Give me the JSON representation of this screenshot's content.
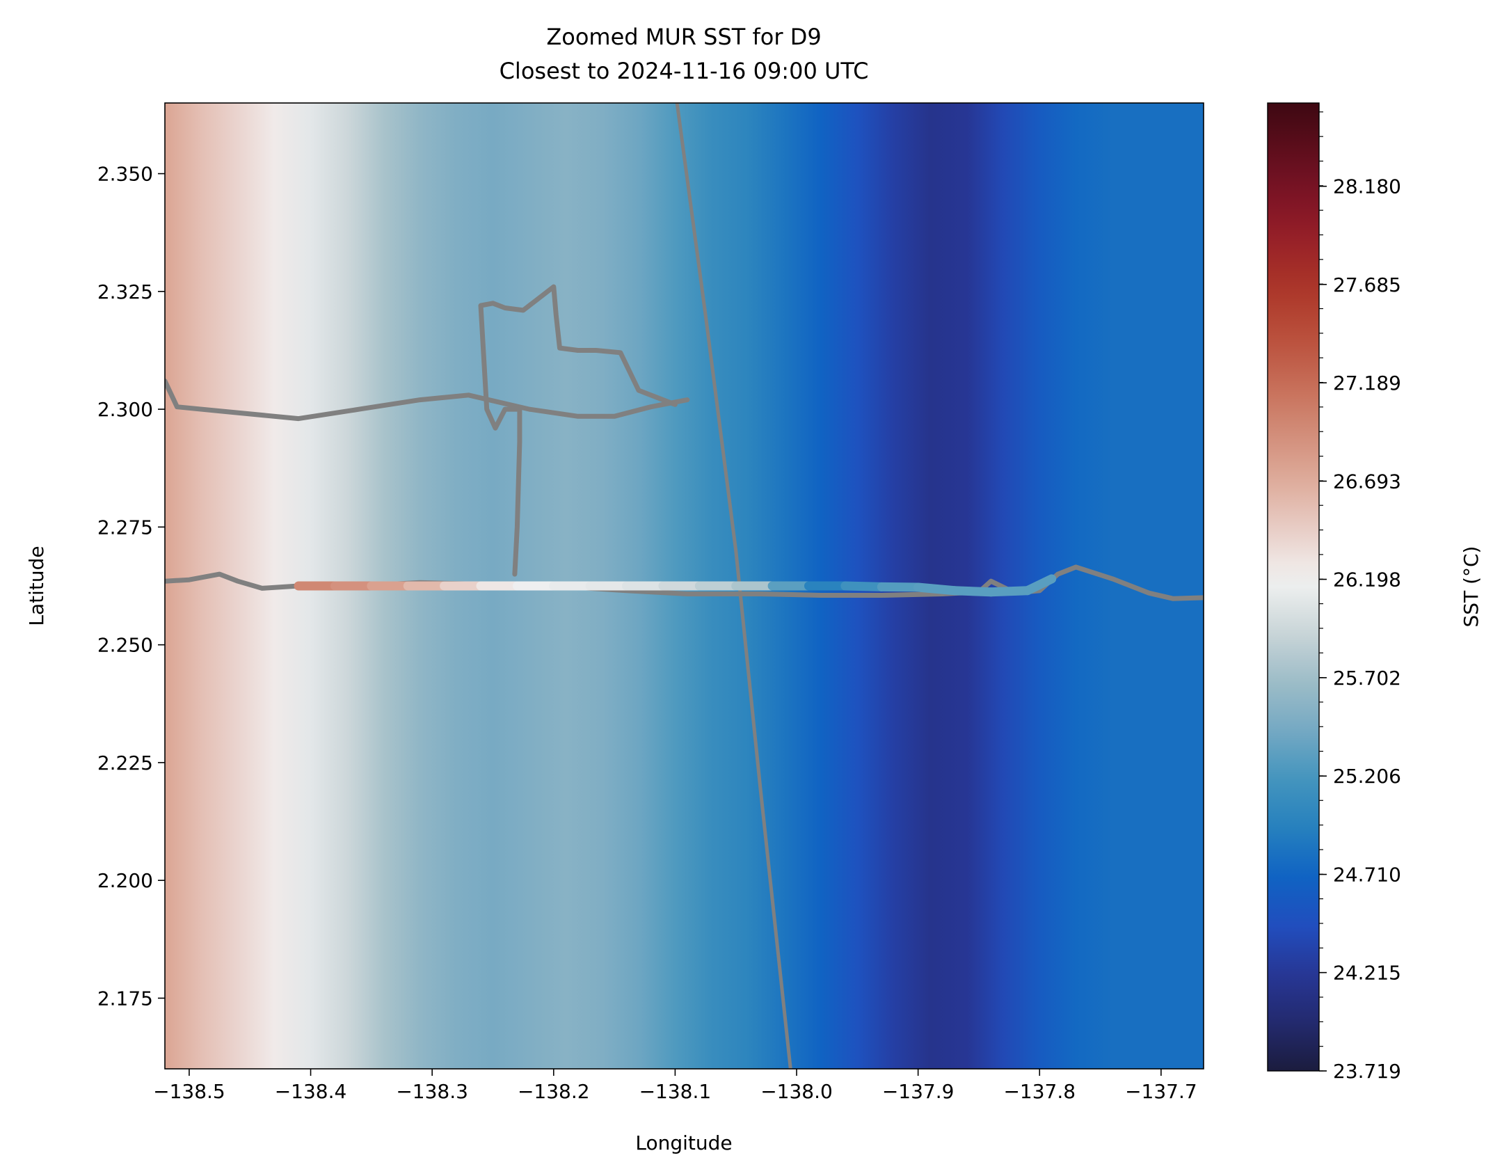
{
  "chart_data": {
    "type": "heatmap",
    "title": "Zoomed MUR SST for D9",
    "subtitle": "Closest to 2024-11-16 09:00 UTC",
    "xlabel": "Longitude",
    "ylabel": "Latitude",
    "xlim": [
      -138.52,
      -137.665
    ],
    "ylim": [
      2.16,
      2.365
    ],
    "xticks": [
      -138.5,
      -138.4,
      -138.3,
      -138.2,
      -138.1,
      -138.0,
      -137.9,
      -137.8,
      -137.7
    ],
    "xtick_labels": [
      "−138.5",
      "−138.4",
      "−138.3",
      "−138.2",
      "−138.1",
      "−138.0",
      "−137.9",
      "−137.8",
      "−137.7"
    ],
    "yticks": [
      2.175,
      2.2,
      2.225,
      2.25,
      2.275,
      2.3,
      2.325,
      2.35
    ],
    "ytick_labels": [
      "2.175",
      "2.200",
      "2.225",
      "2.250",
      "2.275",
      "2.300",
      "2.325",
      "2.350"
    ],
    "colorbar": {
      "label": "SST (°C)",
      "range": [
        23.719,
        28.6
      ],
      "ticks": [
        23.719,
        24.215,
        24.71,
        25.206,
        25.702,
        26.198,
        26.693,
        27.189,
        27.685,
        28.18
      ],
      "tick_labels": [
        "23.719",
        "24.215",
        "24.710",
        "25.206",
        "25.702",
        "26.198",
        "26.693",
        "27.189",
        "27.685",
        "28.180"
      ]
    },
    "sst_field_columns": [
      {
        "lon": -138.52,
        "sst": 26.75
      },
      {
        "lon": -138.49,
        "sst": 26.55
      },
      {
        "lon": -138.46,
        "sst": 26.4
      },
      {
        "lon": -138.43,
        "sst": 26.25
      },
      {
        "lon": -138.4,
        "sst": 26.1
      },
      {
        "lon": -138.37,
        "sst": 25.95
      },
      {
        "lon": -138.34,
        "sst": 25.75
      },
      {
        "lon": -138.31,
        "sst": 25.6
      },
      {
        "lon": -138.28,
        "sst": 25.5
      },
      {
        "lon": -138.25,
        "sst": 25.45
      },
      {
        "lon": -138.22,
        "sst": 25.5
      },
      {
        "lon": -138.19,
        "sst": 25.55
      },
      {
        "lon": -138.16,
        "sst": 25.5
      },
      {
        "lon": -138.13,
        "sst": 25.4
      },
      {
        "lon": -138.1,
        "sst": 25.25
      },
      {
        "lon": -138.07,
        "sst": 25.1
      },
      {
        "lon": -138.04,
        "sst": 25.0
      },
      {
        "lon": -138.01,
        "sst": 24.85
      },
      {
        "lon": -137.98,
        "sst": 24.7
      },
      {
        "lon": -137.95,
        "sst": 24.5
      },
      {
        "lon": -137.92,
        "sst": 24.3
      },
      {
        "lon": -137.89,
        "sst": 24.15
      },
      {
        "lon": -137.86,
        "sst": 24.2
      },
      {
        "lon": -137.83,
        "sst": 24.4
      },
      {
        "lon": -137.8,
        "sst": 24.6
      },
      {
        "lon": -137.77,
        "sst": 24.75
      },
      {
        "lon": -137.74,
        "sst": 24.8
      },
      {
        "lon": -137.71,
        "sst": 24.8
      },
      {
        "lon": -137.68,
        "sst": 24.8
      },
      {
        "lon": -137.665,
        "sst": 24.8
      }
    ],
    "gray_tracks": [
      {
        "name": "",
        "points": [
          [
            -138.52,
            2.306
          ],
          [
            -138.51,
            2.3005
          ],
          [
            -138.47,
            2.2995
          ],
          [
            -138.41,
            2.298
          ],
          [
            -138.36,
            2.3
          ],
          [
            -138.31,
            2.302
          ],
          [
            -138.27,
            2.303
          ],
          [
            -138.22,
            2.3
          ],
          [
            -138.18,
            2.2985
          ],
          [
            -138.15,
            2.2985
          ],
          [
            -138.12,
            2.3005
          ],
          [
            -138.09,
            2.302
          ]
        ]
      },
      {
        "name": "",
        "points": [
          [
            -138.1,
            2.301
          ],
          [
            -138.13,
            2.304
          ],
          [
            -138.145,
            2.312
          ],
          [
            -138.165,
            2.3125
          ],
          [
            -138.18,
            2.3125
          ],
          [
            -138.195,
            2.313
          ],
          [
            -138.198,
            2.32
          ],
          [
            -138.2,
            2.326
          ],
          [
            -138.225,
            2.321
          ],
          [
            -138.24,
            2.3215
          ],
          [
            -138.25,
            2.3225
          ],
          [
            -138.26,
            2.322
          ],
          [
            -138.255,
            2.3
          ],
          [
            -138.248,
            2.296
          ],
          [
            -138.24,
            2.3
          ],
          [
            -138.228,
            2.3
          ],
          [
            -138.228,
            2.293
          ],
          [
            -138.23,
            2.275
          ],
          [
            -138.232,
            2.265
          ]
        ]
      },
      {
        "name": "",
        "points": [
          [
            -138.52,
            2.2635
          ],
          [
            -138.5,
            2.2638
          ],
          [
            -138.475,
            2.265
          ],
          [
            -138.46,
            2.2635
          ],
          [
            -138.44,
            2.262
          ],
          [
            -138.41,
            2.2625
          ],
          [
            -138.36,
            2.2625
          ],
          [
            -138.31,
            2.2632
          ],
          [
            -138.25,
            2.2628
          ],
          [
            -138.2,
            2.2625
          ],
          [
            -138.14,
            2.2615
          ],
          [
            -138.09,
            2.2608
          ],
          [
            -138.03,
            2.2608
          ],
          [
            -137.98,
            2.2605
          ],
          [
            -137.93,
            2.2605
          ],
          [
            -137.88,
            2.2608
          ],
          [
            -137.85,
            2.2612
          ],
          [
            -137.84,
            2.2635
          ],
          [
            -137.82,
            2.261
          ],
          [
            -137.8,
            2.2615
          ],
          [
            -137.785,
            2.265
          ],
          [
            -137.77,
            2.2665
          ],
          [
            -137.74,
            2.264
          ],
          [
            -137.71,
            2.261
          ],
          [
            -137.69,
            2.2598
          ],
          [
            -137.665,
            2.26
          ]
        ]
      },
      {
        "name": "",
        "points": [
          [
            -138.1,
            2.368
          ],
          [
            -138.075,
            2.32
          ],
          [
            -138.05,
            2.27
          ],
          [
            -138.03,
            2.22
          ],
          [
            -138.005,
            2.16
          ]
        ]
      }
    ],
    "colored_track": [
      {
        "lon": -138.41,
        "lat": 2.2625,
        "sst": 27.0
      },
      {
        "lon": -138.38,
        "lat": 2.2625,
        "sst": 26.95
      },
      {
        "lon": -138.35,
        "lat": 2.2625,
        "sst": 26.85
      },
      {
        "lon": -138.32,
        "lat": 2.2625,
        "sst": 26.7
      },
      {
        "lon": -138.29,
        "lat": 2.2625,
        "sst": 26.5
      },
      {
        "lon": -138.26,
        "lat": 2.2625,
        "sst": 26.35
      },
      {
        "lon": -138.23,
        "lat": 2.2625,
        "sst": 26.2
      },
      {
        "lon": -138.2,
        "lat": 2.2625,
        "sst": 26.15
      },
      {
        "lon": -138.17,
        "lat": 2.2625,
        "sst": 26.12
      },
      {
        "lon": -138.14,
        "lat": 2.2625,
        "sst": 26.1
      },
      {
        "lon": -138.11,
        "lat": 2.2625,
        "sst": 26.02
      },
      {
        "lon": -138.08,
        "lat": 2.2625,
        "sst": 25.92
      },
      {
        "lon": -138.05,
        "lat": 2.2625,
        "sst": 25.82
      },
      {
        "lon": -138.02,
        "lat": 2.2625,
        "sst": 25.72
      },
      {
        "lon": -137.99,
        "lat": 2.2625,
        "sst": 24.9
      },
      {
        "lon": -137.96,
        "lat": 2.2625,
        "sst": 25.05
      },
      {
        "lon": -137.93,
        "lat": 2.2623,
        "sst": 25.25
      },
      {
        "lon": -137.9,
        "lat": 2.2622,
        "sst": 25.3
      },
      {
        "lon": -137.87,
        "lat": 2.2615,
        "sst": 25.3
      },
      {
        "lon": -137.84,
        "lat": 2.2612,
        "sst": 25.3
      },
      {
        "lon": -137.81,
        "lat": 2.2615,
        "sst": 25.3
      },
      {
        "lon": -137.79,
        "lat": 2.264,
        "sst": 25.3
      }
    ]
  }
}
